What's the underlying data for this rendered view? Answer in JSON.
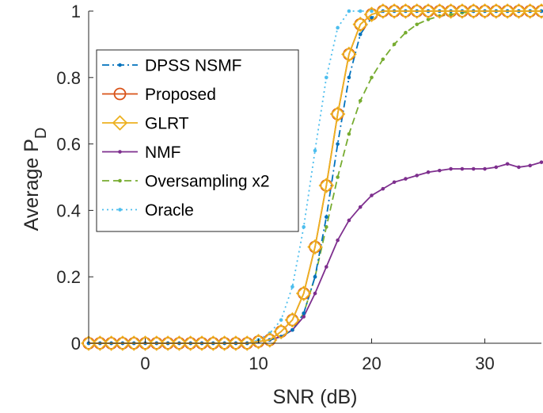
{
  "chart_data": {
    "type": "line",
    "xlabel": "SNR (dB)",
    "ylabel": {
      "main": "Average P",
      "subscript": "D"
    },
    "xlim": [
      -5,
      35
    ],
    "ylim": [
      0,
      1
    ],
    "xticks": [
      0,
      10,
      20,
      30
    ],
    "yticks": [
      0,
      0.2,
      0.4,
      0.6,
      0.8,
      1
    ],
    "yticklabels": [
      "0",
      "0.2",
      "0.4",
      "0.6",
      "0.8",
      "1"
    ],
    "grid": false,
    "legend_position": "upper-left",
    "x": [
      -5,
      -4,
      -3,
      -2,
      -1,
      0,
      1,
      2,
      3,
      4,
      5,
      6,
      7,
      8,
      9,
      10,
      11,
      12,
      13,
      14,
      15,
      16,
      17,
      18,
      19,
      20,
      21,
      22,
      23,
      24,
      25,
      26,
      27,
      28,
      29,
      30,
      31,
      32,
      33,
      34,
      35
    ],
    "series": [
      {
        "name": "DPSS NSMF",
        "color": "#0072BD",
        "style": "dashdot",
        "marker": "dot",
        "values": [
          0,
          0,
          0,
          0,
          0,
          0,
          0,
          0,
          0,
          0,
          0,
          0,
          0,
          0,
          0,
          0.005,
          0.01,
          0.02,
          0.04,
          0.09,
          0.2,
          0.38,
          0.6,
          0.8,
          0.93,
          0.98,
          1,
          1,
          1,
          1,
          1,
          1,
          1,
          1,
          1,
          1,
          1,
          1,
          1,
          1,
          1
        ]
      },
      {
        "name": "Proposed",
        "color": "#D95319",
        "style": "solid",
        "marker": "circle",
        "values": [
          0,
          0,
          0,
          0,
          0,
          0,
          0,
          0,
          0,
          0,
          0,
          0,
          0,
          0,
          0,
          0.005,
          0.01,
          0.035,
          0.07,
          0.15,
          0.29,
          0.475,
          0.69,
          0.87,
          0.96,
          0.99,
          1,
          1,
          1,
          1,
          1,
          1,
          1,
          1,
          1,
          1,
          1,
          1,
          1,
          1,
          1
        ]
      },
      {
        "name": "GLRT",
        "color": "#EDB120",
        "style": "solid",
        "marker": "diamond",
        "values": [
          0,
          0,
          0,
          0,
          0,
          0,
          0,
          0,
          0,
          0,
          0,
          0,
          0,
          0,
          0,
          0.005,
          0.01,
          0.035,
          0.07,
          0.15,
          0.29,
          0.475,
          0.69,
          0.87,
          0.96,
          0.99,
          1,
          1,
          1,
          1,
          1,
          1,
          1,
          1,
          1,
          1,
          1,
          1,
          1,
          1,
          1
        ]
      },
      {
        "name": "NMF",
        "color": "#7E2F8E",
        "style": "solid",
        "marker": "dot",
        "values": [
          0,
          0,
          0,
          0,
          0,
          0,
          0,
          0,
          0,
          0,
          0,
          0,
          0,
          0,
          0,
          0.005,
          0.01,
          0.02,
          0.04,
          0.08,
          0.15,
          0.23,
          0.31,
          0.37,
          0.41,
          0.445,
          0.465,
          0.485,
          0.495,
          0.505,
          0.515,
          0.52,
          0.525,
          0.525,
          0.525,
          0.525,
          0.53,
          0.54,
          0.53,
          0.535,
          0.545
        ]
      },
      {
        "name": "Oversampling x2",
        "color": "#77AC30",
        "style": "dashed",
        "marker": "dot",
        "values": [
          0,
          0,
          0,
          0,
          0,
          0,
          0,
          0,
          0,
          0,
          0,
          0,
          0,
          0,
          0,
          0.005,
          0.01,
          0.02,
          0.04,
          0.09,
          0.2,
          0.35,
          0.5,
          0.63,
          0.73,
          0.8,
          0.855,
          0.9,
          0.935,
          0.96,
          0.975,
          0.985,
          0.99,
          0.995,
          1,
          1,
          1,
          1,
          1,
          1,
          1
        ]
      },
      {
        "name": "Oracle",
        "color": "#4DBEEE",
        "style": "dotted",
        "marker": "dot",
        "values": [
          0,
          0,
          0,
          0,
          0,
          0,
          0,
          0,
          0,
          0,
          0,
          0,
          0,
          0,
          0,
          0.01,
          0.03,
          0.07,
          0.17,
          0.35,
          0.58,
          0.8,
          0.95,
          1,
          1,
          1,
          1,
          1,
          1,
          1,
          1,
          1,
          1,
          1,
          1,
          1,
          1,
          1,
          1,
          1,
          1
        ]
      }
    ]
  }
}
